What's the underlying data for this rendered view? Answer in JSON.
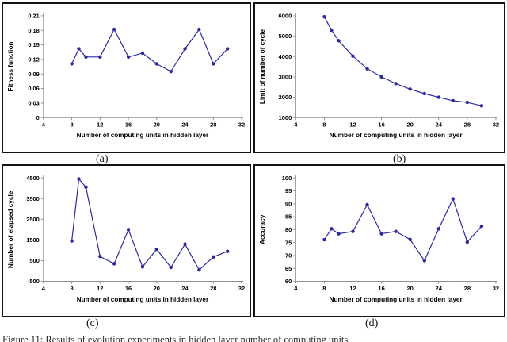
{
  "figure": {
    "subcaptions": {
      "a": "(a)",
      "b": "(b)",
      "c": "(c)",
      "d": "(d)"
    },
    "caption_fragment": "Figure 11: Results of evolution experiments in hidden layer number of computing units",
    "line_color": "#2b2b9e",
    "axis_color": "#8f8f8f"
  },
  "chart_data": [
    {
      "type": "line",
      "panel": "a",
      "title": "",
      "xlabel": "Number of computing units in hidden layer",
      "ylabel": "Fitness function",
      "x": [
        8,
        9,
        10,
        12,
        14,
        16,
        18,
        20,
        22,
        24,
        26,
        28,
        30
      ],
      "values": [
        0.111,
        0.142,
        0.125,
        0.125,
        0.182,
        0.125,
        0.133,
        0.111,
        0.095,
        0.142,
        0.182,
        0.111,
        0.142
      ],
      "xlim": [
        4,
        32
      ],
      "ylim": [
        0,
        0.21
      ],
      "xticks": [
        4,
        8,
        12,
        16,
        20,
        24,
        28,
        32
      ],
      "yticks": [
        0,
        0.03,
        0.06,
        0.09,
        0.12,
        0.15,
        0.18,
        0.21
      ],
      "ytick_labels": [
        "0",
        "0.03",
        "0.06",
        "0.09",
        "0.12",
        "0.15",
        "0.18",
        "0.21"
      ],
      "grid": false,
      "legend": "none"
    },
    {
      "type": "line",
      "panel": "b",
      "title": "",
      "xlabel": "Number of computing units in hidden layer",
      "ylabel": "Limit of number of cycle",
      "x": [
        8,
        9,
        10,
        12,
        14,
        16,
        18,
        20,
        22,
        24,
        26,
        28,
        30
      ],
      "values": [
        5950,
        5300,
        4780,
        4020,
        3400,
        3000,
        2670,
        2400,
        2180,
        2000,
        1830,
        1750,
        1580
      ],
      "xlim": [
        4,
        32
      ],
      "ylim": [
        1000,
        6000
      ],
      "xticks": [
        4,
        8,
        12,
        16,
        20,
        24,
        28,
        32
      ],
      "yticks": [
        1000,
        2000,
        3000,
        4000,
        5000,
        6000
      ],
      "ytick_labels": [
        "1000",
        "2000",
        "3000",
        "4000",
        "5000",
        "6000"
      ],
      "grid": false,
      "legend": "none"
    },
    {
      "type": "line",
      "panel": "c",
      "title": "",
      "xlabel": "Number of computing units in hidden layer",
      "ylabel": "Number of elapsed cycle",
      "x": [
        8,
        9,
        10,
        12,
        14,
        16,
        18,
        20,
        22,
        24,
        26,
        28,
        30
      ],
      "values": [
        1450,
        4450,
        4050,
        700,
        350,
        2000,
        200,
        1050,
        170,
        1300,
        50,
        680,
        950
      ],
      "xlim": [
        4,
        32
      ],
      "ylim": [
        -500,
        4500
      ],
      "xticks": [
        4,
        8,
        12,
        16,
        20,
        24,
        28,
        32
      ],
      "yticks": [
        -500,
        500,
        1500,
        2500,
        3500,
        4500
      ],
      "ytick_labels": [
        "-500",
        "500",
        "1500",
        "2500",
        "3500",
        "4500"
      ],
      "grid": false,
      "legend": "none"
    },
    {
      "type": "line",
      "panel": "d",
      "title": "",
      "xlabel": "Number of computing units in hidden layer",
      "ylabel": "Accuracy",
      "x": [
        8,
        9,
        10,
        12,
        14,
        16,
        18,
        20,
        22,
        24,
        26,
        28,
        30
      ],
      "values": [
        76.1,
        80.3,
        78.4,
        79.3,
        89.6,
        78.4,
        79.3,
        76.2,
        68.0,
        80.3,
        91.9,
        75.2,
        81.3
      ],
      "xlim": [
        4,
        32
      ],
      "ylim": [
        60,
        100
      ],
      "xticks": [
        4,
        8,
        12,
        16,
        20,
        24,
        28,
        32
      ],
      "yticks": [
        60,
        65,
        70,
        75,
        80,
        85,
        90,
        95,
        100
      ],
      "ytick_labels": [
        "60",
        "65",
        "70",
        "75",
        "80",
        "85",
        "90",
        "95",
        "100"
      ],
      "grid": false,
      "legend": "none"
    }
  ]
}
